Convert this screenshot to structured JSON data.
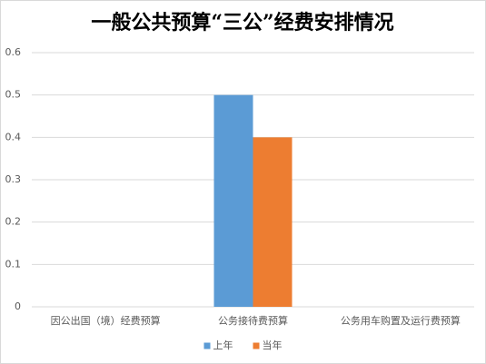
{
  "chart_data": {
    "type": "bar",
    "title": "一般公共预算“三公”经费安排情况",
    "categories": [
      "因公出国（境）经费预算",
      "公务接待费预算",
      "公务用车购置及运行费预算"
    ],
    "series": [
      {
        "name": "上年",
        "color": "#5b9bd5",
        "values": [
          0,
          0.5,
          0
        ]
      },
      {
        "name": "当年",
        "color": "#ed7d31",
        "values": [
          0,
          0.4,
          0
        ]
      }
    ],
    "ylim": [
      0,
      0.6
    ],
    "yticks": [
      0,
      0.1,
      0.2,
      0.3,
      0.4,
      0.5,
      0.6
    ],
    "grid": true,
    "legend": "bottom"
  }
}
